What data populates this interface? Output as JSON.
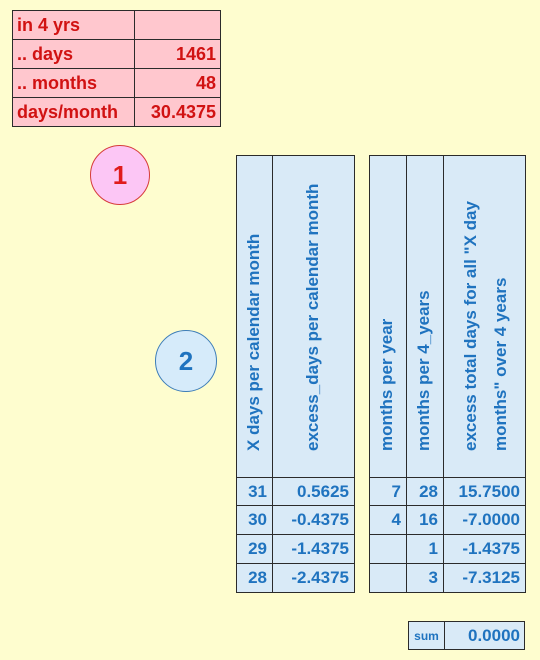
{
  "summary_table": {
    "rows": [
      {
        "label": "in 4 yrs",
        "value": ""
      },
      {
        "label": ".. days",
        "value": "1461"
      },
      {
        "label": ".. months",
        "value": "48"
      },
      {
        "label": "days/month",
        "value": "30.4375"
      }
    ]
  },
  "markers": {
    "one": "1",
    "two": "2"
  },
  "table_left": {
    "headers": [
      "X days per calendar month",
      "excess_days per calendar month"
    ],
    "rows": [
      [
        "31",
        "0.5625"
      ],
      [
        "30",
        "-0.4375"
      ],
      [
        "29",
        "-1.4375"
      ],
      [
        "28",
        "-2.4375"
      ]
    ]
  },
  "table_right": {
    "headers": [
      "months per year",
      "months per 4_years",
      "excess total days for all \"X day",
      "months\" over 4 years"
    ],
    "rows": [
      [
        "7",
        "28",
        "15.7500"
      ],
      [
        "4",
        "16",
        "-7.0000"
      ],
      [
        "",
        "1",
        "-1.4375"
      ],
      [
        "",
        "3",
        "-7.3125"
      ]
    ]
  },
  "sum": {
    "label": "sum",
    "value": "0.0000"
  }
}
